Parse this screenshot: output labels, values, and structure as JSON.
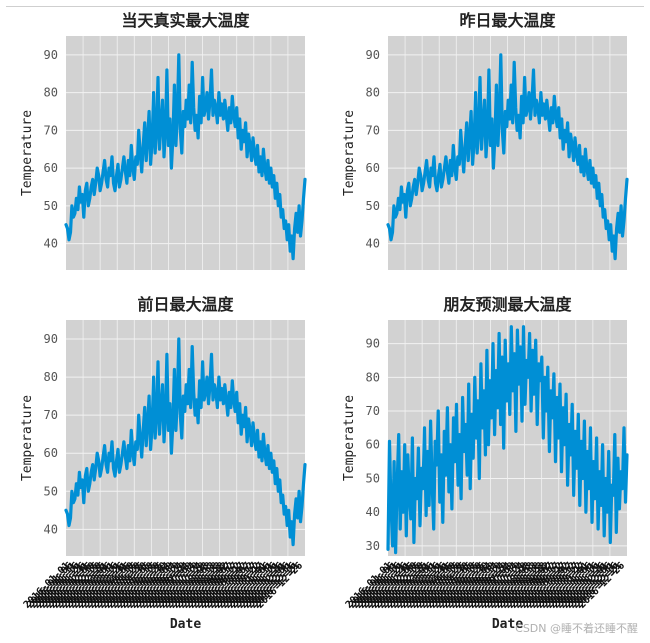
{
  "watermark": "CSDN @睡不着还睡不醒",
  "chart_data": [
    {
      "type": "line",
      "title": "当天真实最大温度",
      "xlabel": "",
      "ylabel": "Temperature",
      "ylim": [
        33,
        95
      ],
      "yticks": [
        40,
        50,
        60,
        70,
        80,
        90
      ],
      "color": "#008fd5",
      "x_range": [
        "2016-01-01",
        "2016-12-31"
      ],
      "series": [
        {
          "values": [
            45,
            44,
            41,
            43,
            50,
            47,
            48,
            52,
            49,
            55,
            51,
            53,
            47,
            54,
            56,
            50,
            52,
            55,
            57,
            53,
            56,
            60,
            58,
            54,
            56,
            59,
            62,
            57,
            55,
            60,
            58,
            63,
            56,
            54,
            58,
            61,
            55,
            57,
            60,
            63,
            59,
            56,
            62,
            58,
            66,
            60,
            57,
            63,
            61,
            70,
            64,
            59,
            66,
            72,
            62,
            68,
            75,
            61,
            67,
            80,
            64,
            70,
            84,
            65,
            72,
            78,
            63,
            70,
            86,
            66,
            73,
            60,
            68,
            82,
            66,
            74,
            90,
            70,
            64,
            75,
            71,
            78,
            73,
            82,
            72,
            88,
            76,
            70,
            74,
            68,
            79,
            72,
            84,
            74,
            76,
            80,
            73,
            78,
            86,
            74,
            78,
            76,
            72,
            80,
            74,
            77,
            73,
            78,
            74,
            70,
            76,
            72,
            79,
            74,
            71,
            76,
            68,
            73,
            65,
            70,
            67,
            72,
            63,
            69,
            66,
            62,
            68,
            64,
            61,
            66,
            59,
            63,
            58,
            65,
            60,
            57,
            62,
            56,
            60,
            55,
            58,
            52,
            56,
            50,
            53,
            47,
            49,
            44,
            46,
            41,
            45,
            38,
            42,
            36,
            44,
            48,
            43,
            50,
            42,
            46,
            52,
            57
          ]
        }
      ],
      "x_tick_labels": []
    },
    {
      "type": "line",
      "title": "昨日最大温度",
      "xlabel": "",
      "ylabel": "Temperature",
      "ylim": [
        33,
        95
      ],
      "yticks": [
        40,
        50,
        60,
        70,
        80,
        90
      ],
      "color": "#008fd5",
      "x_range": [
        "2016-01-01",
        "2016-12-31"
      ],
      "series": [
        {
          "values": [
            45,
            44,
            41,
            43,
            50,
            47,
            48,
            52,
            49,
            55,
            51,
            53,
            47,
            54,
            56,
            50,
            52,
            55,
            57,
            53,
            56,
            60,
            58,
            54,
            56,
            59,
            62,
            57,
            55,
            60,
            58,
            63,
            56,
            54,
            58,
            61,
            55,
            57,
            60,
            63,
            59,
            56,
            62,
            58,
            66,
            60,
            57,
            63,
            61,
            70,
            64,
            59,
            66,
            72,
            62,
            68,
            75,
            61,
            67,
            80,
            64,
            70,
            84,
            65,
            72,
            78,
            63,
            70,
            86,
            66,
            73,
            60,
            68,
            82,
            66,
            74,
            90,
            70,
            64,
            75,
            71,
            78,
            73,
            82,
            72,
            88,
            76,
            70,
            74,
            68,
            79,
            72,
            84,
            74,
            76,
            80,
            73,
            78,
            86,
            74,
            78,
            76,
            72,
            80,
            74,
            77,
            73,
            78,
            74,
            70,
            76,
            72,
            79,
            74,
            71,
            76,
            68,
            73,
            65,
            70,
            67,
            72,
            63,
            69,
            66,
            62,
            68,
            64,
            61,
            66,
            59,
            63,
            58,
            65,
            60,
            57,
            62,
            56,
            60,
            55,
            58,
            52,
            56,
            50,
            53,
            47,
            49,
            44,
            46,
            41,
            45,
            38,
            42,
            36,
            44,
            48,
            43,
            50,
            42,
            46,
            52,
            57
          ]
        }
      ],
      "x_tick_labels": []
    },
    {
      "type": "line",
      "title": "前日最大温度",
      "xlabel": "Date",
      "ylabel": "Temperature",
      "ylim": [
        33,
        95
      ],
      "yticks": [
        40,
        50,
        60,
        70,
        80,
        90
      ],
      "color": "#008fd5",
      "x_range": [
        "2016-01-01",
        "2016-12-31"
      ],
      "series": [
        {
          "values": [
            45,
            44,
            41,
            43,
            50,
            47,
            48,
            52,
            49,
            55,
            51,
            53,
            47,
            54,
            56,
            50,
            52,
            55,
            57,
            53,
            56,
            60,
            58,
            54,
            56,
            59,
            62,
            57,
            55,
            60,
            58,
            63,
            56,
            54,
            58,
            61,
            55,
            57,
            60,
            63,
            59,
            56,
            62,
            58,
            66,
            60,
            57,
            63,
            61,
            70,
            64,
            59,
            66,
            72,
            62,
            68,
            75,
            61,
            67,
            80,
            64,
            70,
            84,
            65,
            72,
            78,
            63,
            70,
            86,
            66,
            73,
            60,
            68,
            82,
            66,
            74,
            90,
            70,
            64,
            75,
            71,
            78,
            73,
            82,
            72,
            88,
            76,
            70,
            74,
            68,
            79,
            72,
            84,
            74,
            76,
            80,
            73,
            78,
            86,
            74,
            78,
            76,
            72,
            80,
            74,
            77,
            73,
            78,
            74,
            70,
            76,
            72,
            79,
            74,
            71,
            76,
            68,
            73,
            65,
            70,
            67,
            72,
            63,
            69,
            66,
            62,
            68,
            64,
            61,
            66,
            59,
            63,
            58,
            65,
            60,
            57,
            62,
            56,
            60,
            55,
            58,
            52,
            56,
            50,
            53,
            47,
            49,
            44,
            46,
            41,
            45,
            38,
            42,
            36,
            44,
            48,
            43,
            50,
            42,
            46,
            52,
            57
          ]
        }
      ],
      "x_tick_labels": [
        "2016-01-01",
        "2016-01-06",
        "2016-01-11",
        "2016-01-16",
        "2016-01-21",
        "2016-01-26",
        "2016-01-31",
        "2016-02-05",
        "2016-02-10",
        "2016-02-15",
        "2016-02-20",
        "2016-02-25",
        "2016-03-01",
        "2016-03-06",
        "2016-03-11",
        "2016-03-16",
        "2016-03-21",
        "2016-03-26",
        "2016-03-31",
        "2016-04-05",
        "2016-04-10",
        "2016-04-15",
        "2016-04-20",
        "2016-04-25",
        "2016-04-30",
        "2016-05-05",
        "2016-05-10",
        "2016-05-15",
        "2016-05-20",
        "2016-05-25",
        "2016-05-30",
        "2016-06-04",
        "2016-06-09",
        "2016-06-14",
        "2016-06-19",
        "2016-06-24",
        "2016-06-29",
        "2016-07-04",
        "2016-07-09",
        "2016-07-14",
        "2016-07-19",
        "2016-07-24",
        "2016-07-29",
        "2016-08-03",
        "2016-08-08",
        "2016-08-13",
        "2016-08-18",
        "2016-08-23",
        "2016-08-28",
        "2016-09-02",
        "2016-09-07",
        "2016-09-12",
        "2016-09-17",
        "2016-09-22",
        "2016-09-27",
        "2016-10-02",
        "2016-10-07",
        "2016-10-12",
        "2016-10-17",
        "2016-10-22",
        "2016-10-27",
        "2016-11-01",
        "2016-11-06",
        "2016-11-11",
        "2016-11-16",
        "2016-11-21",
        "2016-11-26",
        "2016-12-01",
        "2016-12-06",
        "2016-12-11",
        "2016-12-16",
        "2016-12-21",
        "2016-12-26"
      ]
    },
    {
      "type": "line",
      "title": "朋友预测最大温度",
      "xlabel": "Date",
      "ylabel": "Temperature",
      "ylim": [
        27,
        97
      ],
      "yticks": [
        30,
        40,
        50,
        60,
        70,
        80,
        90
      ],
      "color": "#008fd5",
      "x_range": [
        "2016-01-01",
        "2016-12-31"
      ],
      "series": [
        {
          "values": [
            29,
            61,
            42,
            30,
            55,
            28,
            48,
            63,
            35,
            52,
            40,
            60,
            33,
            57,
            45,
            38,
            62,
            31,
            50,
            44,
            59,
            36,
            53,
            47,
            65,
            39,
            58,
            42,
            67,
            49,
            35,
            61,
            54,
            70,
            43,
            57,
            37,
            64,
            51,
            71,
            46,
            60,
            41,
            68,
            55,
            72,
            48,
            63,
            44,
            74,
            58,
            66,
            51,
            78,
            47,
            69,
            56,
            80,
            62,
            73,
            50,
            84,
            65,
            76,
            57,
            88,
            60,
            79,
            68,
            90,
            63,
            82,
            71,
            93,
            66,
            86,
            59,
            91,
            73,
            84,
            69,
            95,
            76,
            87,
            64,
            94,
            78,
            89,
            67,
            95,
            72,
            85,
            80,
            93,
            70,
            88,
            75,
            91,
            66,
            84,
            79,
            86,
            62,
            80,
            70,
            83,
            58,
            76,
            68,
            81,
            55,
            74,
            62,
            78,
            52,
            71,
            60,
            75,
            48,
            66,
            57,
            72,
            45,
            64,
            53,
            69,
            42,
            61,
            50,
            67,
            40,
            58,
            47,
            65,
            37,
            55,
            44,
            62,
            35,
            52,
            42,
            60,
            33,
            50,
            40,
            58,
            31,
            48,
            45,
            63,
            34,
            56,
            41,
            52,
            47,
            65,
            43,
            57
          ]
        }
      ],
      "x_tick_labels": [
        "2016-01-01",
        "2016-01-06",
        "2016-01-11",
        "2016-01-16",
        "2016-01-21",
        "2016-01-26",
        "2016-01-31",
        "2016-02-05",
        "2016-02-10",
        "2016-02-15",
        "2016-02-20",
        "2016-02-25",
        "2016-03-01",
        "2016-03-06",
        "2016-03-11",
        "2016-03-16",
        "2016-03-21",
        "2016-03-26",
        "2016-03-31",
        "2016-04-05",
        "2016-04-10",
        "2016-04-15",
        "2016-04-20",
        "2016-04-25",
        "2016-04-30",
        "2016-05-05",
        "2016-05-10",
        "2016-05-15",
        "2016-05-20",
        "2016-05-25",
        "2016-05-30",
        "2016-06-04",
        "2016-06-09",
        "2016-06-14",
        "2016-06-19",
        "2016-06-24",
        "2016-06-29",
        "2016-07-04",
        "2016-07-09",
        "2016-07-14",
        "2016-07-19",
        "2016-07-24",
        "2016-07-29",
        "2016-08-03",
        "2016-08-08",
        "2016-08-13",
        "2016-08-18",
        "2016-08-23",
        "2016-08-28",
        "2016-09-02",
        "2016-09-07",
        "2016-09-12",
        "2016-09-17",
        "2016-09-22",
        "2016-09-27",
        "2016-10-02",
        "2016-10-07",
        "2016-10-12",
        "2016-10-17",
        "2016-10-22",
        "2016-10-27",
        "2016-11-01",
        "2016-11-06",
        "2016-11-11",
        "2016-11-16",
        "2016-11-21",
        "2016-11-26",
        "2016-12-01",
        "2016-12-06",
        "2016-12-11",
        "2016-12-16",
        "2016-12-21",
        "2016-12-26"
      ]
    }
  ]
}
